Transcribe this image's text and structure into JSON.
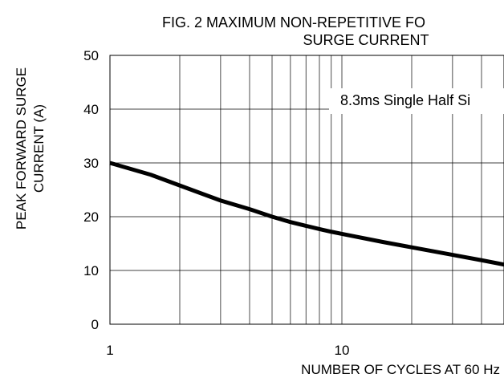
{
  "chart_data": {
    "type": "line",
    "title_lines": [
      "FIG. 2 MAXIMUM  NON-REPETITIVE FO",
      "SURGE CURRENT"
    ],
    "xlabel": "NUMBER OF CYCLES AT 60 Hz",
    "ylabel_lines": [
      "PEAK FORWARD SURGE",
      "CURRENT (A)"
    ],
    "x_scale": "log",
    "xlim": [
      1,
      50
    ],
    "ylim": [
      0,
      50
    ],
    "x_tick_labels": [
      {
        "value": 1,
        "label": "1"
      },
      {
        "value": 10,
        "label": "10"
      }
    ],
    "y_tick_labels": [
      {
        "value": 0,
        "label": "0"
      },
      {
        "value": 10,
        "label": "10"
      },
      {
        "value": 20,
        "label": "20"
      },
      {
        "value": 30,
        "label": "30"
      },
      {
        "value": 40,
        "label": "40"
      },
      {
        "value": 50,
        "label": "50"
      }
    ],
    "x_gridlines": [
      2,
      3,
      4,
      5,
      6,
      7,
      8,
      9,
      10,
      20,
      30,
      40
    ],
    "y_gridlines": [
      10,
      20,
      30,
      40
    ],
    "grid": true,
    "annotation": "8.3ms Single Half Si",
    "line_color": "#000000",
    "series": [
      {
        "x": [
          1,
          1.5,
          2,
          3,
          4,
          5,
          6,
          7,
          8,
          9,
          10,
          15,
          20,
          30,
          40,
          50
        ],
        "y": [
          30,
          27.8,
          25.8,
          23.0,
          21.4,
          20.0,
          19.0,
          18.3,
          17.7,
          17.2,
          16.8,
          15.3,
          14.3,
          12.9,
          11.9,
          11.1
        ]
      }
    ]
  }
}
